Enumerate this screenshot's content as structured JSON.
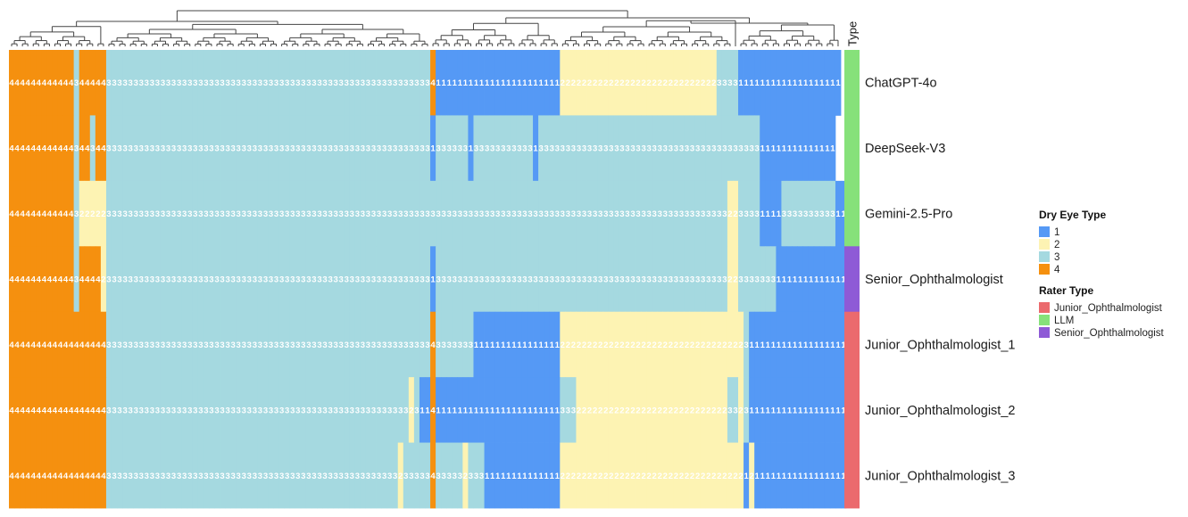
{
  "chart_data": {
    "type": "heatmap",
    "title": "",
    "rows": [
      "ChatGPT-4o",
      "DeepSeek-V3",
      "Gemini-2.5-Pro",
      "Senior_Ophthalmologist",
      "Junior_Ophthalmologist_1",
      "Junior_Ophthalmologist_2",
      "Junior_Ophthalmologist_3"
    ],
    "row_types": [
      "LLM",
      "LLM",
      "LLM",
      "Senior_Ophthalmologist",
      "Junior_Ophthalmologist",
      "Junior_Ophthalmologist",
      "Junior_Ophthalmologist"
    ],
    "values": [
      [
        4,
        4,
        4,
        4,
        4,
        4,
        4,
        4,
        4,
        4,
        4,
        4,
        3,
        4,
        4,
        4,
        4,
        4,
        3,
        3,
        3,
        3,
        3,
        3,
        3,
        3,
        3,
        3,
        3,
        3,
        3,
        3,
        3,
        3,
        3,
        3,
        3,
        3,
        3,
        3,
        3,
        3,
        3,
        3,
        3,
        3,
        3,
        3,
        3,
        3,
        3,
        3,
        3,
        3,
        3,
        3,
        3,
        3,
        3,
        3,
        3,
        3,
        3,
        3,
        3,
        3,
        3,
        3,
        3,
        3,
        3,
        3,
        3,
        3,
        3,
        3,
        3,
        3,
        4,
        1,
        1,
        1,
        1,
        1,
        1,
        1,
        1,
        1,
        1,
        1,
        1,
        1,
        1,
        1,
        1,
        1,
        1,
        1,
        1,
        1,
        1,
        1,
        2,
        2,
        2,
        2,
        2,
        2,
        2,
        2,
        2,
        2,
        2,
        2,
        2,
        2,
        2,
        2,
        2,
        2,
        2,
        2,
        2,
        2,
        2,
        2,
        2,
        2,
        2,
        2,
        2,
        3,
        3,
        3,
        3,
        1,
        1,
        1,
        1,
        1,
        1,
        1,
        1,
        1,
        1,
        1,
        1,
        1,
        1,
        1,
        1,
        1,
        1,
        1
      ],
      [
        4,
        4,
        4,
        4,
        4,
        4,
        4,
        4,
        4,
        4,
        4,
        4,
        3,
        4,
        4,
        3,
        4,
        4,
        3,
        3,
        3,
        3,
        3,
        3,
        3,
        3,
        3,
        3,
        3,
        3,
        3,
        3,
        3,
        3,
        3,
        3,
        3,
        3,
        3,
        3,
        3,
        3,
        3,
        3,
        3,
        3,
        3,
        3,
        3,
        3,
        3,
        3,
        3,
        3,
        3,
        3,
        3,
        3,
        3,
        3,
        3,
        3,
        3,
        3,
        3,
        3,
        3,
        3,
        3,
        3,
        3,
        3,
        3,
        3,
        3,
        3,
        3,
        3,
        1,
        3,
        3,
        3,
        3,
        3,
        3,
        1,
        3,
        3,
        3,
        3,
        3,
        3,
        3,
        3,
        3,
        3,
        3,
        1,
        3,
        3,
        3,
        3,
        3,
        3,
        3,
        3,
        3,
        3,
        3,
        3,
        3,
        3,
        3,
        3,
        3,
        3,
        3,
        3,
        3,
        3,
        3,
        3,
        3,
        3,
        3,
        3,
        3,
        3,
        3,
        3,
        3,
        3,
        3,
        3,
        3,
        3,
        3,
        3,
        3,
        1,
        1,
        1,
        1,
        1,
        1,
        1,
        1,
        1,
        1,
        1,
        1,
        1,
        1
      ],
      [
        4,
        4,
        4,
        4,
        4,
        4,
        4,
        4,
        4,
        4,
        4,
        4,
        3,
        2,
        2,
        2,
        2,
        2,
        3,
        3,
        3,
        3,
        3,
        3,
        3,
        3,
        3,
        3,
        3,
        3,
        3,
        3,
        3,
        3,
        3,
        3,
        3,
        3,
        3,
        3,
        3,
        3,
        3,
        3,
        3,
        3,
        3,
        3,
        3,
        3,
        3,
        3,
        3,
        3,
        3,
        3,
        3,
        3,
        3,
        3,
        3,
        3,
        3,
        3,
        3,
        3,
        3,
        3,
        3,
        3,
        3,
        3,
        3,
        3,
        3,
        3,
        3,
        3,
        3,
        3,
        3,
        3,
        3,
        3,
        3,
        3,
        3,
        3,
        3,
        3,
        3,
        3,
        3,
        3,
        3,
        3,
        3,
        3,
        3,
        3,
        3,
        3,
        3,
        3,
        3,
        3,
        3,
        3,
        3,
        3,
        3,
        3,
        3,
        3,
        3,
        3,
        3,
        3,
        3,
        3,
        3,
        3,
        3,
        3,
        3,
        3,
        3,
        3,
        3,
        3,
        3,
        3,
        3,
        2,
        2,
        3,
        3,
        3,
        3,
        1,
        1,
        1,
        1,
        3,
        3,
        3,
        3,
        3,
        3,
        3,
        3,
        3,
        3,
        1,
        1
      ],
      [
        4,
        4,
        4,
        4,
        4,
        4,
        4,
        4,
        4,
        4,
        4,
        4,
        3,
        4,
        4,
        4,
        4,
        2,
        3,
        3,
        3,
        3,
        3,
        3,
        3,
        3,
        3,
        3,
        3,
        3,
        3,
        3,
        3,
        3,
        3,
        3,
        3,
        3,
        3,
        3,
        3,
        3,
        3,
        3,
        3,
        3,
        3,
        3,
        3,
        3,
        3,
        3,
        3,
        3,
        3,
        3,
        3,
        3,
        3,
        3,
        3,
        3,
        3,
        3,
        3,
        3,
        3,
        3,
        3,
        3,
        3,
        3,
        3,
        3,
        3,
        3,
        3,
        3,
        1,
        3,
        3,
        3,
        3,
        3,
        3,
        3,
        3,
        3,
        3,
        3,
        3,
        3,
        3,
        3,
        3,
        3,
        3,
        3,
        3,
        3,
        3,
        3,
        3,
        3,
        3,
        3,
        3,
        3,
        3,
        3,
        3,
        3,
        3,
        3,
        3,
        3,
        3,
        3,
        3,
        3,
        3,
        3,
        3,
        3,
        3,
        3,
        3,
        3,
        3,
        3,
        3,
        3,
        3,
        2,
        2,
        3,
        3,
        3,
        3,
        3,
        3,
        3,
        1,
        1,
        1,
        1,
        1,
        1,
        1,
        1,
        1,
        1,
        1,
        1,
        1
      ],
      [
        4,
        4,
        4,
        4,
        4,
        4,
        4,
        4,
        4,
        4,
        4,
        4,
        4,
        4,
        4,
        4,
        4,
        4,
        3,
        3,
        3,
        3,
        3,
        3,
        3,
        3,
        3,
        3,
        3,
        3,
        3,
        3,
        3,
        3,
        3,
        3,
        3,
        3,
        3,
        3,
        3,
        3,
        3,
        3,
        3,
        3,
        3,
        3,
        3,
        3,
        3,
        3,
        3,
        3,
        3,
        3,
        3,
        3,
        3,
        3,
        3,
        3,
        3,
        3,
        3,
        3,
        3,
        3,
        3,
        3,
        3,
        3,
        3,
        3,
        3,
        3,
        3,
        3,
        4,
        3,
        3,
        3,
        3,
        3,
        3,
        3,
        1,
        1,
        1,
        1,
        1,
        1,
        1,
        1,
        1,
        1,
        1,
        1,
        1,
        1,
        1,
        1,
        2,
        2,
        2,
        2,
        2,
        2,
        2,
        2,
        2,
        2,
        2,
        2,
        2,
        2,
        2,
        2,
        2,
        2,
        2,
        2,
        2,
        2,
        2,
        2,
        2,
        2,
        2,
        2,
        2,
        2,
        2,
        2,
        2,
        2,
        3,
        1,
        1,
        1,
        1,
        1,
        1,
        1,
        1,
        1,
        1,
        1,
        1,
        1,
        1,
        1,
        1,
        1,
        1
      ],
      [
        4,
        4,
        4,
        4,
        4,
        4,
        4,
        4,
        4,
        4,
        4,
        4,
        4,
        4,
        4,
        4,
        4,
        4,
        3,
        3,
        3,
        3,
        3,
        3,
        3,
        3,
        3,
        3,
        3,
        3,
        3,
        3,
        3,
        3,
        3,
        3,
        3,
        3,
        3,
        3,
        3,
        3,
        3,
        3,
        3,
        3,
        3,
        3,
        3,
        3,
        3,
        3,
        3,
        3,
        3,
        3,
        3,
        3,
        3,
        3,
        3,
        3,
        3,
        3,
        3,
        3,
        3,
        3,
        3,
        3,
        3,
        3,
        3,
        3,
        2,
        3,
        1,
        1,
        4,
        1,
        1,
        1,
        1,
        1,
        1,
        1,
        1,
        1,
        1,
        1,
        1,
        1,
        1,
        1,
        1,
        1,
        1,
        1,
        1,
        1,
        1,
        1,
        3,
        3,
        3,
        2,
        2,
        2,
        2,
        2,
        2,
        2,
        2,
        2,
        2,
        2,
        2,
        2,
        2,
        2,
        2,
        2,
        2,
        2,
        2,
        2,
        2,
        2,
        2,
        2,
        2,
        2,
        2,
        3,
        3,
        2,
        3,
        1,
        1,
        1,
        1,
        1,
        1,
        1,
        1,
        1,
        1,
        1,
        1,
        1,
        1,
        1,
        1,
        1,
        1
      ],
      [
        4,
        4,
        4,
        4,
        4,
        4,
        4,
        4,
        4,
        4,
        4,
        4,
        4,
        4,
        4,
        4,
        4,
        4,
        3,
        3,
        3,
        3,
        3,
        3,
        3,
        3,
        3,
        3,
        3,
        3,
        3,
        3,
        3,
        3,
        3,
        3,
        3,
        3,
        3,
        3,
        3,
        3,
        3,
        3,
        3,
        3,
        3,
        3,
        3,
        3,
        3,
        3,
        3,
        3,
        3,
        3,
        3,
        3,
        3,
        3,
        3,
        3,
        3,
        3,
        3,
        3,
        3,
        3,
        3,
        3,
        3,
        3,
        2,
        3,
        3,
        3,
        3,
        3,
        4,
        3,
        3,
        3,
        3,
        3,
        2,
        3,
        3,
        3,
        1,
        1,
        1,
        1,
        1,
        1,
        1,
        1,
        1,
        1,
        1,
        1,
        1,
        1,
        2,
        2,
        2,
        2,
        2,
        2,
        2,
        2,
        2,
        2,
        2,
        2,
        2,
        2,
        2,
        2,
        2,
        2,
        2,
        2,
        2,
        2,
        2,
        2,
        2,
        2,
        2,
        2,
        2,
        2,
        2,
        2,
        2,
        2,
        1,
        2,
        1,
        1,
        1,
        1,
        1,
        1,
        1,
        1,
        1,
        1,
        1,
        1,
        1,
        1,
        1,
        1,
        1
      ]
    ],
    "colors": {
      "1": "#5599F5",
      "2": "#FDF3B3",
      "3": "#A5D9E0",
      "4": "#F5900F"
    },
    "type_colors": {
      "Junior_Ophthalmologist": "#EB6A6D",
      "LLM": "#86E17A",
      "Senior_Ophthalmologist": "#8E5AD6"
    },
    "annotation_label": "Type",
    "legend": {
      "dry_eye": {
        "title": "Dry Eye Type",
        "items": [
          {
            "label": "1",
            "color": "#5599F5"
          },
          {
            "label": "2",
            "color": "#FDF3B3"
          },
          {
            "label": "3",
            "color": "#A5D9E0"
          },
          {
            "label": "4",
            "color": "#F5900F"
          }
        ]
      },
      "rater": {
        "title": "Rater Type",
        "items": [
          {
            "label": "Junior_Ophthalmologist",
            "color": "#EB6A6D"
          },
          {
            "label": "LLM",
            "color": "#86E17A"
          },
          {
            "label": "Senior_Ophthalmologist",
            "color": "#8E5AD6"
          }
        ]
      }
    },
    "column_dendrogram": true,
    "legend_placement": "right"
  }
}
